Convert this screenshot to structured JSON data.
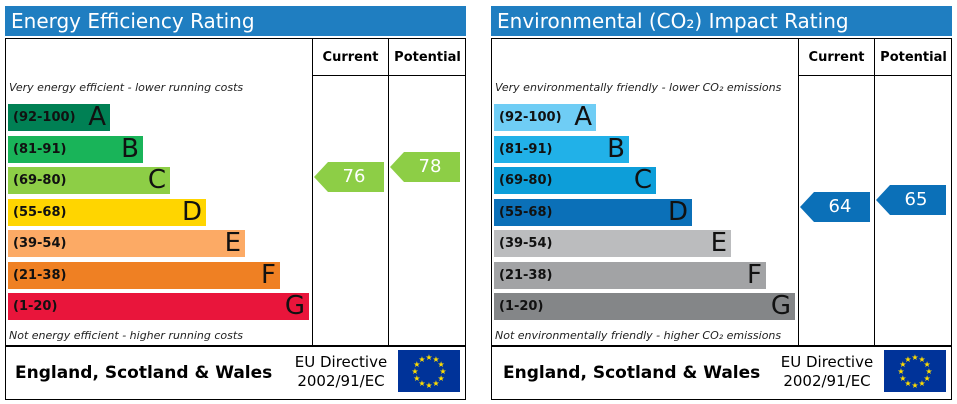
{
  "colors": {
    "title_bar": "#1f7ec1",
    "energy_bands": [
      "#008054",
      "#19b459",
      "#8dce46",
      "#ffd500",
      "#fcaa65",
      "#ef8023",
      "#e9153b"
    ],
    "env_bands": [
      "#6fcdf5",
      "#21b1e8",
      "#0d9ed9",
      "#0b70b8",
      "#bbbcbe",
      "#a2a3a5",
      "#848688"
    ],
    "energy_arrow": "#8dce46",
    "env_arrow": "#0b70b8",
    "flag_blue": "#003399",
    "flag_star": "#ffdd00"
  },
  "chart_data": [
    {
      "type": "bar",
      "title": "Energy Efficiency Rating",
      "columns": [
        "Current",
        "Potential"
      ],
      "top_caption": "Very energy efficient - lower running costs",
      "bottom_caption": "Not energy efficient - higher running costs",
      "bands": [
        {
          "range": "(92-100)",
          "letter": "A"
        },
        {
          "range": "(81-91)",
          "letter": "B"
        },
        {
          "range": "(69-80)",
          "letter": "C"
        },
        {
          "range": "(55-68)",
          "letter": "D"
        },
        {
          "range": "(39-54)",
          "letter": "E"
        },
        {
          "range": "(21-38)",
          "letter": "F"
        },
        {
          "range": "(1-20)",
          "letter": "G"
        }
      ],
      "current": 76,
      "potential": 78,
      "footer": {
        "country": "England, Scotland & Wales",
        "directive_line1": "EU Directive",
        "directive_line2": "2002/91/EC"
      }
    },
    {
      "type": "bar",
      "title": "Environmental (CO₂) Impact Rating",
      "columns": [
        "Current",
        "Potential"
      ],
      "top_caption": "Very environmentally friendly - lower CO₂ emissions",
      "bottom_caption": "Not environmentally friendly - higher CO₂ emissions",
      "bands": [
        {
          "range": "(92-100)",
          "letter": "A"
        },
        {
          "range": "(81-91)",
          "letter": "B"
        },
        {
          "range": "(69-80)",
          "letter": "C"
        },
        {
          "range": "(55-68)",
          "letter": "D"
        },
        {
          "range": "(39-54)",
          "letter": "E"
        },
        {
          "range": "(21-38)",
          "letter": "F"
        },
        {
          "range": "(1-20)",
          "letter": "G"
        }
      ],
      "current": 64,
      "potential": 65,
      "footer": {
        "country": "England, Scotland & Wales",
        "directive_line1": "EU Directive",
        "directive_line2": "2002/91/EC"
      }
    }
  ]
}
